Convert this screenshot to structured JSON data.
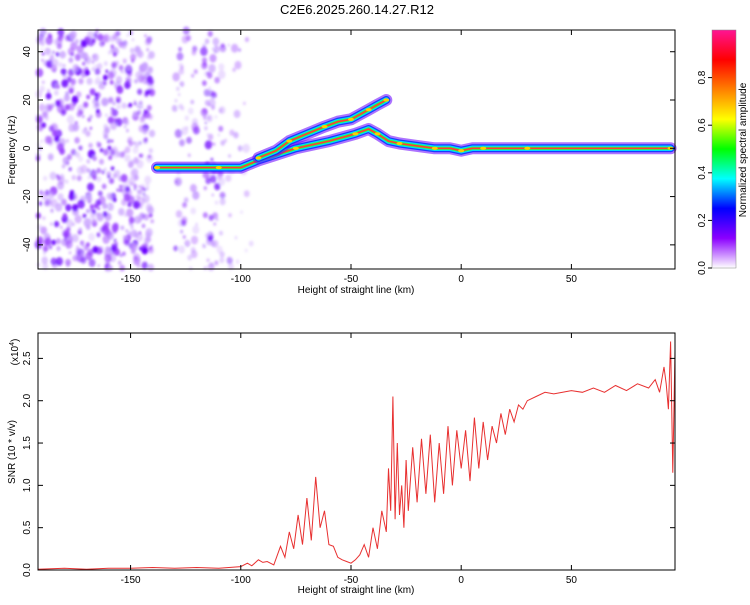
{
  "title": "C2E6.2025.260.14.27.R12",
  "chart_data": [
    {
      "type": "heatmap",
      "xlabel": "Height of straight line (km)",
      "ylabel": "Frequency (Hz)",
      "xlim": [
        -192,
        97
      ],
      "ylim": [
        -50,
        49
      ],
      "xticks": [
        -150,
        -100,
        -50,
        0,
        50
      ],
      "xtick_labels": [
        "-150",
        "-100",
        "-50",
        "0",
        "50"
      ],
      "yticks": [
        -40,
        -20,
        0,
        20,
        40
      ],
      "ytick_labels": [
        "-40",
        "-20",
        "0",
        "20",
        "40"
      ],
      "colorbar": {
        "label": "Normalized spectral amplitude",
        "range": [
          0,
          1
        ],
        "ticks": [
          0,
          0.2,
          0.4,
          0.6,
          0.8
        ],
        "tick_labels": [
          "0.0",
          "0.2",
          "0.4",
          "0.6",
          "0.8"
        ],
        "colors": [
          "#ffffff",
          "#8b00ff",
          "#0000ff",
          "#00ffff",
          "#00ff00",
          "#ffff00",
          "#ff8000",
          "#ff0000",
          "#ff1493"
        ]
      },
      "traces": [
        {
          "name": "main",
          "points": [
            [
              -138,
              -8
            ],
            [
              -125,
              -8
            ],
            [
              -110,
              -8
            ],
            [
              -100,
              -8
            ],
            [
              -92,
              -5
            ],
            [
              -85,
              -3
            ],
            [
              -75,
              0
            ],
            [
              -60,
              3
            ],
            [
              -48,
              6
            ],
            [
              -42,
              8
            ],
            [
              -38,
              6
            ],
            [
              -33,
              3
            ],
            [
              -28,
              2
            ],
            [
              -20,
              1
            ],
            [
              -12,
              0
            ],
            [
              -5,
              0
            ],
            [
              0,
              -1
            ],
            [
              5,
              0
            ],
            [
              10,
              0
            ],
            [
              15,
              0
            ],
            [
              30,
              0
            ],
            [
              60,
              0
            ],
            [
              95,
              0
            ]
          ]
        },
        {
          "name": "upper",
          "points": [
            [
              -92,
              -4
            ],
            [
              -84,
              -1
            ],
            [
              -78,
              3
            ],
            [
              -70,
              6
            ],
            [
              -62,
              9
            ],
            [
              -56,
              11
            ],
            [
              -50,
              12
            ],
            [
              -46,
              14
            ],
            [
              -42,
              16
            ],
            [
              -38,
              18
            ],
            [
              -34,
              20
            ]
          ]
        }
      ]
    },
    {
      "type": "line",
      "xlabel": "Height of straight line (km)",
      "ylabel": "SNR (10 * v/v)",
      "exponent_label": "(x10",
      "exponent_power": "4",
      "exponent_close": ")",
      "xlim": [
        -192,
        97
      ],
      "ylim": [
        0,
        2.8
      ],
      "xticks": [
        -150,
        -100,
        -50,
        0,
        50
      ],
      "xtick_labels": [
        "-150",
        "-100",
        "-50",
        "0",
        "50"
      ],
      "yticks": [
        0,
        0.5,
        1,
        1.5,
        2,
        2.5
      ],
      "ytick_labels": [
        "0.0",
        "0.5",
        "1.0",
        "1.5",
        "2.0",
        "2.5"
      ],
      "line_color": "#e83030",
      "series": [
        {
          "name": "SNR",
          "x": [
            -192,
            -180,
            -170,
            -160,
            -150,
            -140,
            -130,
            -120,
            -110,
            -100,
            -97,
            -95,
            -92,
            -90,
            -88,
            -85,
            -82,
            -80,
            -78,
            -76,
            -74,
            -72,
            -70,
            -68,
            -66,
            -64,
            -62,
            -60,
            -58,
            -56,
            -54,
            -52,
            -50,
            -48,
            -46,
            -44,
            -42,
            -40,
            -38,
            -36,
            -34,
            -33,
            -32,
            -31,
            -30,
            -29,
            -28,
            -27,
            -26,
            -25,
            -24,
            -22,
            -20,
            -18,
            -16,
            -14,
            -12,
            -10,
            -8,
            -6,
            -4,
            -2,
            0,
            2,
            4,
            6,
            8,
            10,
            12,
            14,
            16,
            18,
            20,
            22,
            24,
            26,
            28,
            30,
            34,
            38,
            42,
            46,
            50,
            55,
            60,
            65,
            70,
            75,
            80,
            85,
            88,
            90,
            92,
            93,
            94,
            95,
            96,
            97
          ],
          "values": [
            0.01,
            0.02,
            0.01,
            0.02,
            0.02,
            0.03,
            0.02,
            0.03,
            0.02,
            0.04,
            0.08,
            0.05,
            0.12,
            0.09,
            0.1,
            0.06,
            0.28,
            0.15,
            0.45,
            0.25,
            0.65,
            0.3,
            0.85,
            0.35,
            1.1,
            0.5,
            0.7,
            0.3,
            0.28,
            0.15,
            0.12,
            0.1,
            0.08,
            0.12,
            0.18,
            0.3,
            0.15,
            0.5,
            0.25,
            0.7,
            0.45,
            1.2,
            0.7,
            2.05,
            0.6,
            1.5,
            0.65,
            1.0,
            0.5,
            1.3,
            0.7,
            1.45,
            0.8,
            1.55,
            0.9,
            1.6,
            0.8,
            1.5,
            0.9,
            1.7,
            1.0,
            1.65,
            1.2,
            1.65,
            1.05,
            1.8,
            1.2,
            1.75,
            1.3,
            1.7,
            1.5,
            1.85,
            1.6,
            1.9,
            1.75,
            1.95,
            1.9,
            2.0,
            2.05,
            2.1,
            2.08,
            2.1,
            2.12,
            2.1,
            2.15,
            2.1,
            2.18,
            2.12,
            2.2,
            2.15,
            2.25,
            2.1,
            2.4,
            2.2,
            1.9,
            2.7,
            1.15,
            2.6
          ]
        }
      ]
    }
  ]
}
